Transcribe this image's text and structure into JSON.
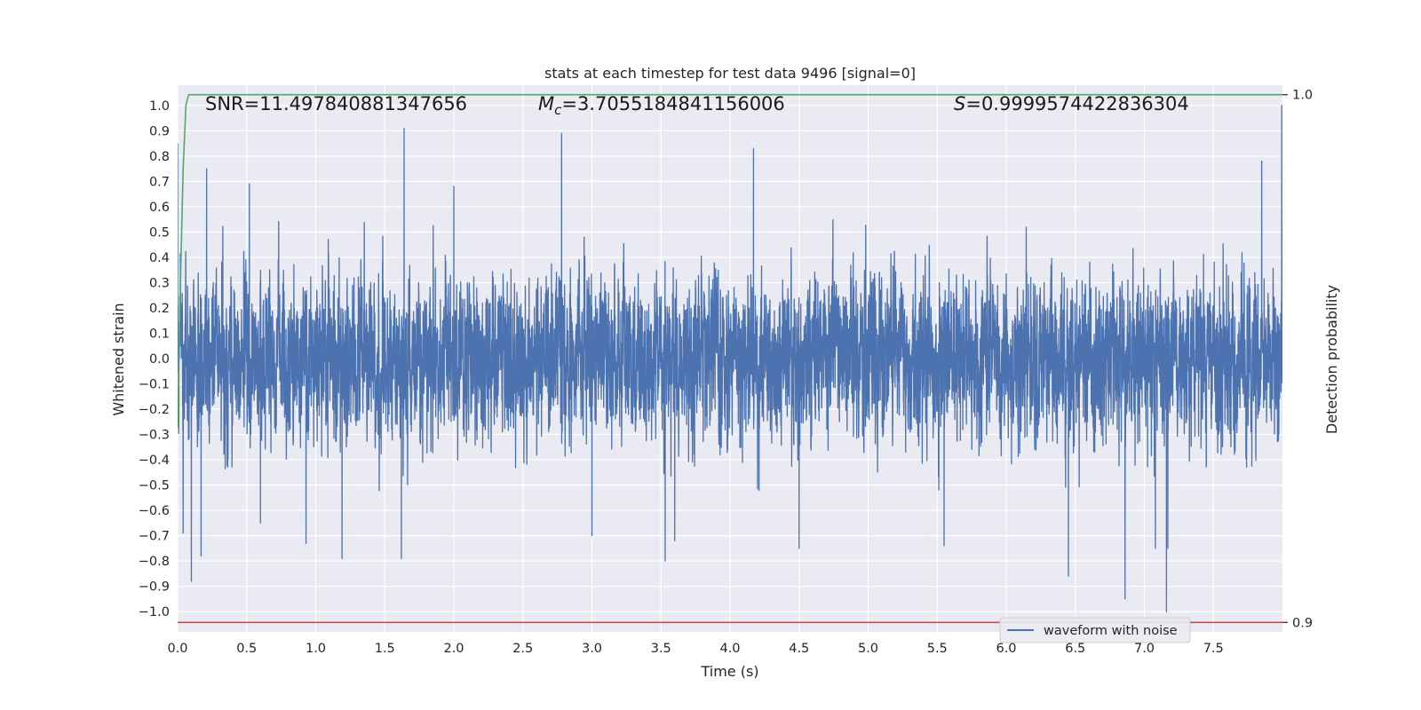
{
  "chart_data": {
    "type": "line",
    "title": "stats at each timestep for test data 9496 [signal=0]",
    "xlabel": "Time (s)",
    "ylabel": "Whitened strain",
    "y2label": "Detection probability",
    "xlim": [
      0,
      8
    ],
    "ylim": [
      -1.08,
      1.08
    ],
    "y2lim": [
      0.8982,
      1.0018
    ],
    "x_ticks": [
      "0.0",
      "0.5",
      "1.0",
      "1.5",
      "2.0",
      "2.5",
      "3.0",
      "3.5",
      "4.0",
      "4.5",
      "5.0",
      "5.5",
      "6.0",
      "6.5",
      "7.0",
      "7.5"
    ],
    "x_tick_values": [
      0,
      0.5,
      1,
      1.5,
      2,
      2.5,
      3,
      3.5,
      4,
      4.5,
      5,
      5.5,
      6,
      6.5,
      7,
      7.5
    ],
    "y_ticks": [
      "1.0",
      "0.9",
      "0.8",
      "0.7",
      "0.6",
      "0.5",
      "0.4",
      "0.3",
      "0.2",
      "0.1",
      "0.0",
      "−0.1",
      "−0.2",
      "−0.3",
      "−0.4",
      "−0.5",
      "−0.6",
      "−0.7",
      "−0.8",
      "−0.9",
      "−1.0"
    ],
    "y_tick_values": [
      1.0,
      0.9,
      0.8,
      0.7,
      0.6,
      0.5,
      0.4,
      0.3,
      0.2,
      0.1,
      0.0,
      -0.1,
      -0.2,
      -0.3,
      -0.4,
      -0.5,
      -0.6,
      -0.7,
      -0.8,
      -0.9,
      -1.0
    ],
    "y2_ticks": [
      "1.0",
      "0.9"
    ],
    "y2_tick_values": [
      1.0,
      0.9
    ],
    "grid": true,
    "legend": {
      "placement": "bottom-right",
      "entries": [
        "waveform with noise"
      ]
    },
    "annotations": {
      "snr": "SNR=11.497840881347656",
      "mc_symbol": "M",
      "mc_sub": "c",
      "mc_value": "=3.7055184841156006",
      "s_symbol": "S",
      "s_value": "=0.9999574422836304"
    },
    "series": [
      {
        "name": "waveform with noise",
        "axis": "left",
        "color": "#4c72b0",
        "sample_rate": 1024,
        "t_end": 7.999,
        "rms": 0.2,
        "peaks": [
          {
            "t": 0.0,
            "v": 0.85
          },
          {
            "t": 0.04,
            "v": -0.69
          },
          {
            "t": 0.1,
            "v": -0.88
          },
          {
            "t": 0.17,
            "v": -0.78
          },
          {
            "t": 0.21,
            "v": 0.75
          },
          {
            "t": 0.52,
            "v": 0.69
          },
          {
            "t": 0.6,
            "v": -0.65
          },
          {
            "t": 0.93,
            "v": -0.73
          },
          {
            "t": 1.19,
            "v": -0.79
          },
          {
            "t": 1.62,
            "v": -0.79
          },
          {
            "t": 1.64,
            "v": 0.91
          },
          {
            "t": 2.0,
            "v": 0.68
          },
          {
            "t": 2.78,
            "v": 0.89
          },
          {
            "t": 3.0,
            "v": -0.7
          },
          {
            "t": 3.53,
            "v": -0.8
          },
          {
            "t": 3.6,
            "v": -0.72
          },
          {
            "t": 4.17,
            "v": 0.83
          },
          {
            "t": 4.5,
            "v": -0.75
          },
          {
            "t": 5.55,
            "v": -0.74
          },
          {
            "t": 6.45,
            "v": -0.86
          },
          {
            "t": 6.86,
            "v": -0.95
          },
          {
            "t": 7.08,
            "v": -0.75
          },
          {
            "t": 7.16,
            "v": -1.0
          },
          {
            "t": 7.17,
            "v": -0.75
          },
          {
            "t": 7.85,
            "v": 0.78
          },
          {
            "t": 7.995,
            "v": 1.0
          }
        ]
      },
      {
        "name": "",
        "axis": "right",
        "color": "#55a868",
        "x": [
          0,
          0.02,
          0.04,
          0.06,
          0.08,
          8.0
        ],
        "y": [
          0.937,
          0.964,
          0.986,
          0.998,
          1.0,
          1.0
        ]
      },
      {
        "name": "",
        "axis": "right",
        "color": "#c44e52",
        "x": [
          0,
          8.0
        ],
        "y": [
          0.9,
          0.9
        ]
      }
    ]
  }
}
